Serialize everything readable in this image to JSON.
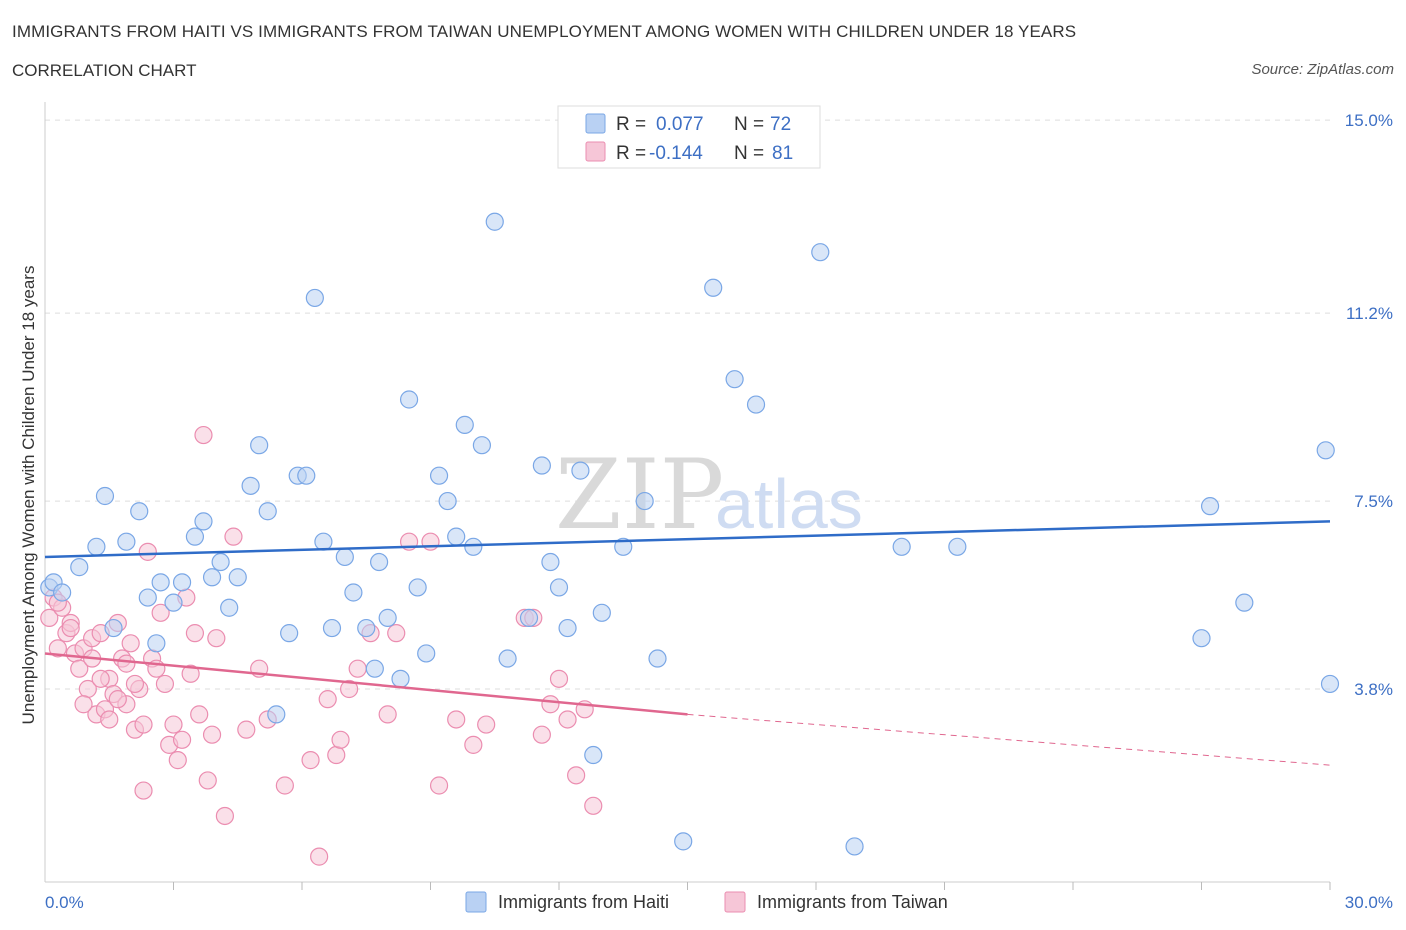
{
  "title": "IMMIGRANTS FROM HAITI VS IMMIGRANTS FROM TAIWAN UNEMPLOYMENT AMONG WOMEN WITH CHILDREN UNDER 18 YEARS",
  "subtitle": "CORRELATION CHART",
  "source": "Source: ZipAtlas.com",
  "watermark": {
    "zip": "ZIP",
    "atlas": "atlas"
  },
  "colors": {
    "haiti": "#7aa7e6",
    "haiti_fill": "#b9d1f3",
    "taiwan": "#eb8db0",
    "taiwan_fill": "#f6c6d7",
    "haiti_line": "#2f6cc8",
    "taiwan_line": "#e0678f"
  },
  "legend": {
    "r_label": "R =",
    "n_label": "N =",
    "haiti": {
      "r": "0.077",
      "n": "72"
    },
    "taiwan": {
      "r": "-0.144",
      "n": "81"
    }
  },
  "chart_data": {
    "type": "scatter",
    "xlabel": "",
    "ylabel": "Unemployment Among Women with Children Under 18 years",
    "xlim": [
      0,
      30
    ],
    "ylim": [
      0,
      15.2
    ],
    "x_tick_labels": [
      "0.0%",
      "30.0%"
    ],
    "y_ticks": [
      3.8,
      7.5,
      11.2,
      15.0
    ],
    "y_tick_labels": [
      "3.8%",
      "7.5%",
      "11.2%",
      "15.0%"
    ],
    "grid": "horizontal dashed",
    "legend_position": "top-center",
    "series": [
      {
        "name": "Immigrants from Haiti",
        "trend": {
          "x": [
            0,
            30
          ],
          "y": [
            6.4,
            7.1
          ]
        },
        "points": [
          [
            0.1,
            5.8
          ],
          [
            0.2,
            5.9
          ],
          [
            0.4,
            5.7
          ],
          [
            0.8,
            6.2
          ],
          [
            1.2,
            6.6
          ],
          [
            1.4,
            7.6
          ],
          [
            1.6,
            5.0
          ],
          [
            1.9,
            6.7
          ],
          [
            2.2,
            7.3
          ],
          [
            2.4,
            5.6
          ],
          [
            2.7,
            5.9
          ],
          [
            2.6,
            4.7
          ],
          [
            3.0,
            5.5
          ],
          [
            3.2,
            5.9
          ],
          [
            3.5,
            6.8
          ],
          [
            3.7,
            7.1
          ],
          [
            3.9,
            6.0
          ],
          [
            4.1,
            6.3
          ],
          [
            4.3,
            5.4
          ],
          [
            4.5,
            6.0
          ],
          [
            4.8,
            7.8
          ],
          [
            5.0,
            8.6
          ],
          [
            5.2,
            7.3
          ],
          [
            5.4,
            3.3
          ],
          [
            5.7,
            4.9
          ],
          [
            5.9,
            8.0
          ],
          [
            6.1,
            8.0
          ],
          [
            6.3,
            11.5
          ],
          [
            6.5,
            6.7
          ],
          [
            6.7,
            5.0
          ],
          [
            7.0,
            6.4
          ],
          [
            7.2,
            5.7
          ],
          [
            7.5,
            5.0
          ],
          [
            7.7,
            4.2
          ],
          [
            7.8,
            6.3
          ],
          [
            8.0,
            5.2
          ],
          [
            8.3,
            4.0
          ],
          [
            8.5,
            9.5
          ],
          [
            8.7,
            5.8
          ],
          [
            8.9,
            4.5
          ],
          [
            9.2,
            8.0
          ],
          [
            9.4,
            7.5
          ],
          [
            9.6,
            6.8
          ],
          [
            9.8,
            9.0
          ],
          [
            10.0,
            6.6
          ],
          [
            10.2,
            8.6
          ],
          [
            10.5,
            13.0
          ],
          [
            10.8,
            4.4
          ],
          [
            11.3,
            5.2
          ],
          [
            11.6,
            8.2
          ],
          [
            11.8,
            6.3
          ],
          [
            12.0,
            5.8
          ],
          [
            12.2,
            5.0
          ],
          [
            12.5,
            8.1
          ],
          [
            12.8,
            2.5
          ],
          [
            13.0,
            5.3
          ],
          [
            13.5,
            6.6
          ],
          [
            14.0,
            7.5
          ],
          [
            14.3,
            4.4
          ],
          [
            14.9,
            0.8
          ],
          [
            15.6,
            11.7
          ],
          [
            16.1,
            9.9
          ],
          [
            16.6,
            9.4
          ],
          [
            18.1,
            12.4
          ],
          [
            18.9,
            0.7
          ],
          [
            20.0,
            6.6
          ],
          [
            21.3,
            6.6
          ],
          [
            27.0,
            4.8
          ],
          [
            27.2,
            7.4
          ],
          [
            28.0,
            5.5
          ],
          [
            29.9,
            8.5
          ],
          [
            30.0,
            3.9
          ]
        ]
      },
      {
        "name": "Immigrants from Taiwan",
        "trend": {
          "x": [
            0,
            15
          ],
          "y": [
            4.5,
            3.3
          ]
        },
        "trend_dashed": {
          "x": [
            15,
            30
          ],
          "y": [
            3.3,
            2.3
          ]
        },
        "points": [
          [
            0.1,
            5.2
          ],
          [
            0.2,
            5.6
          ],
          [
            0.3,
            4.6
          ],
          [
            0.4,
            5.4
          ],
          [
            0.5,
            4.9
          ],
          [
            0.6,
            5.1
          ],
          [
            0.7,
            4.5
          ],
          [
            0.8,
            4.2
          ],
          [
            0.9,
            4.6
          ],
          [
            1.0,
            3.8
          ],
          [
            1.1,
            4.8
          ],
          [
            1.2,
            3.3
          ],
          [
            1.3,
            4.9
          ],
          [
            1.4,
            3.4
          ],
          [
            1.5,
            4.0
          ],
          [
            1.6,
            3.7
          ],
          [
            1.7,
            5.1
          ],
          [
            1.8,
            4.4
          ],
          [
            1.9,
            3.5
          ],
          [
            2.0,
            4.7
          ],
          [
            2.1,
            3.0
          ],
          [
            2.2,
            3.8
          ],
          [
            2.3,
            1.8
          ],
          [
            2.4,
            6.5
          ],
          [
            2.5,
            4.4
          ],
          [
            2.6,
            4.2
          ],
          [
            2.7,
            5.3
          ],
          [
            2.8,
            3.9
          ],
          [
            2.9,
            2.7
          ],
          [
            3.0,
            3.1
          ],
          [
            3.1,
            2.4
          ],
          [
            3.2,
            2.8
          ],
          [
            3.3,
            5.6
          ],
          [
            3.4,
            4.1
          ],
          [
            3.5,
            4.9
          ],
          [
            3.6,
            3.3
          ],
          [
            3.7,
            8.8
          ],
          [
            3.8,
            2.0
          ],
          [
            3.9,
            2.9
          ],
          [
            4.0,
            4.8
          ],
          [
            4.2,
            1.3
          ],
          [
            4.4,
            6.8
          ],
          [
            4.7,
            3.0
          ],
          [
            5.0,
            4.2
          ],
          [
            5.2,
            3.2
          ],
          [
            5.6,
            1.9
          ],
          [
            6.2,
            2.4
          ],
          [
            6.4,
            0.5
          ],
          [
            6.6,
            3.6
          ],
          [
            6.8,
            2.5
          ],
          [
            6.9,
            2.8
          ],
          [
            7.1,
            3.8
          ],
          [
            7.3,
            4.2
          ],
          [
            7.6,
            4.9
          ],
          [
            8.0,
            3.3
          ],
          [
            8.2,
            4.9
          ],
          [
            8.5,
            6.7
          ],
          [
            9.0,
            6.7
          ],
          [
            9.2,
            1.9
          ],
          [
            9.6,
            3.2
          ],
          [
            10.0,
            2.7
          ],
          [
            10.3,
            3.1
          ],
          [
            11.2,
            5.2
          ],
          [
            11.4,
            5.2
          ],
          [
            11.6,
            2.9
          ],
          [
            11.8,
            3.5
          ],
          [
            12.0,
            4.0
          ],
          [
            12.2,
            3.2
          ],
          [
            12.4,
            2.1
          ],
          [
            12.6,
            3.4
          ],
          [
            12.8,
            1.5
          ],
          [
            0.3,
            5.5
          ],
          [
            0.6,
            5.0
          ],
          [
            0.9,
            3.5
          ],
          [
            1.1,
            4.4
          ],
          [
            1.3,
            4.0
          ],
          [
            1.5,
            3.2
          ],
          [
            1.7,
            3.6
          ],
          [
            1.9,
            4.3
          ],
          [
            2.1,
            3.9
          ],
          [
            2.3,
            3.1
          ]
        ]
      }
    ]
  },
  "bottom_legend": {
    "haiti": "Immigrants from Haiti",
    "taiwan": "Immigrants from Taiwan"
  }
}
